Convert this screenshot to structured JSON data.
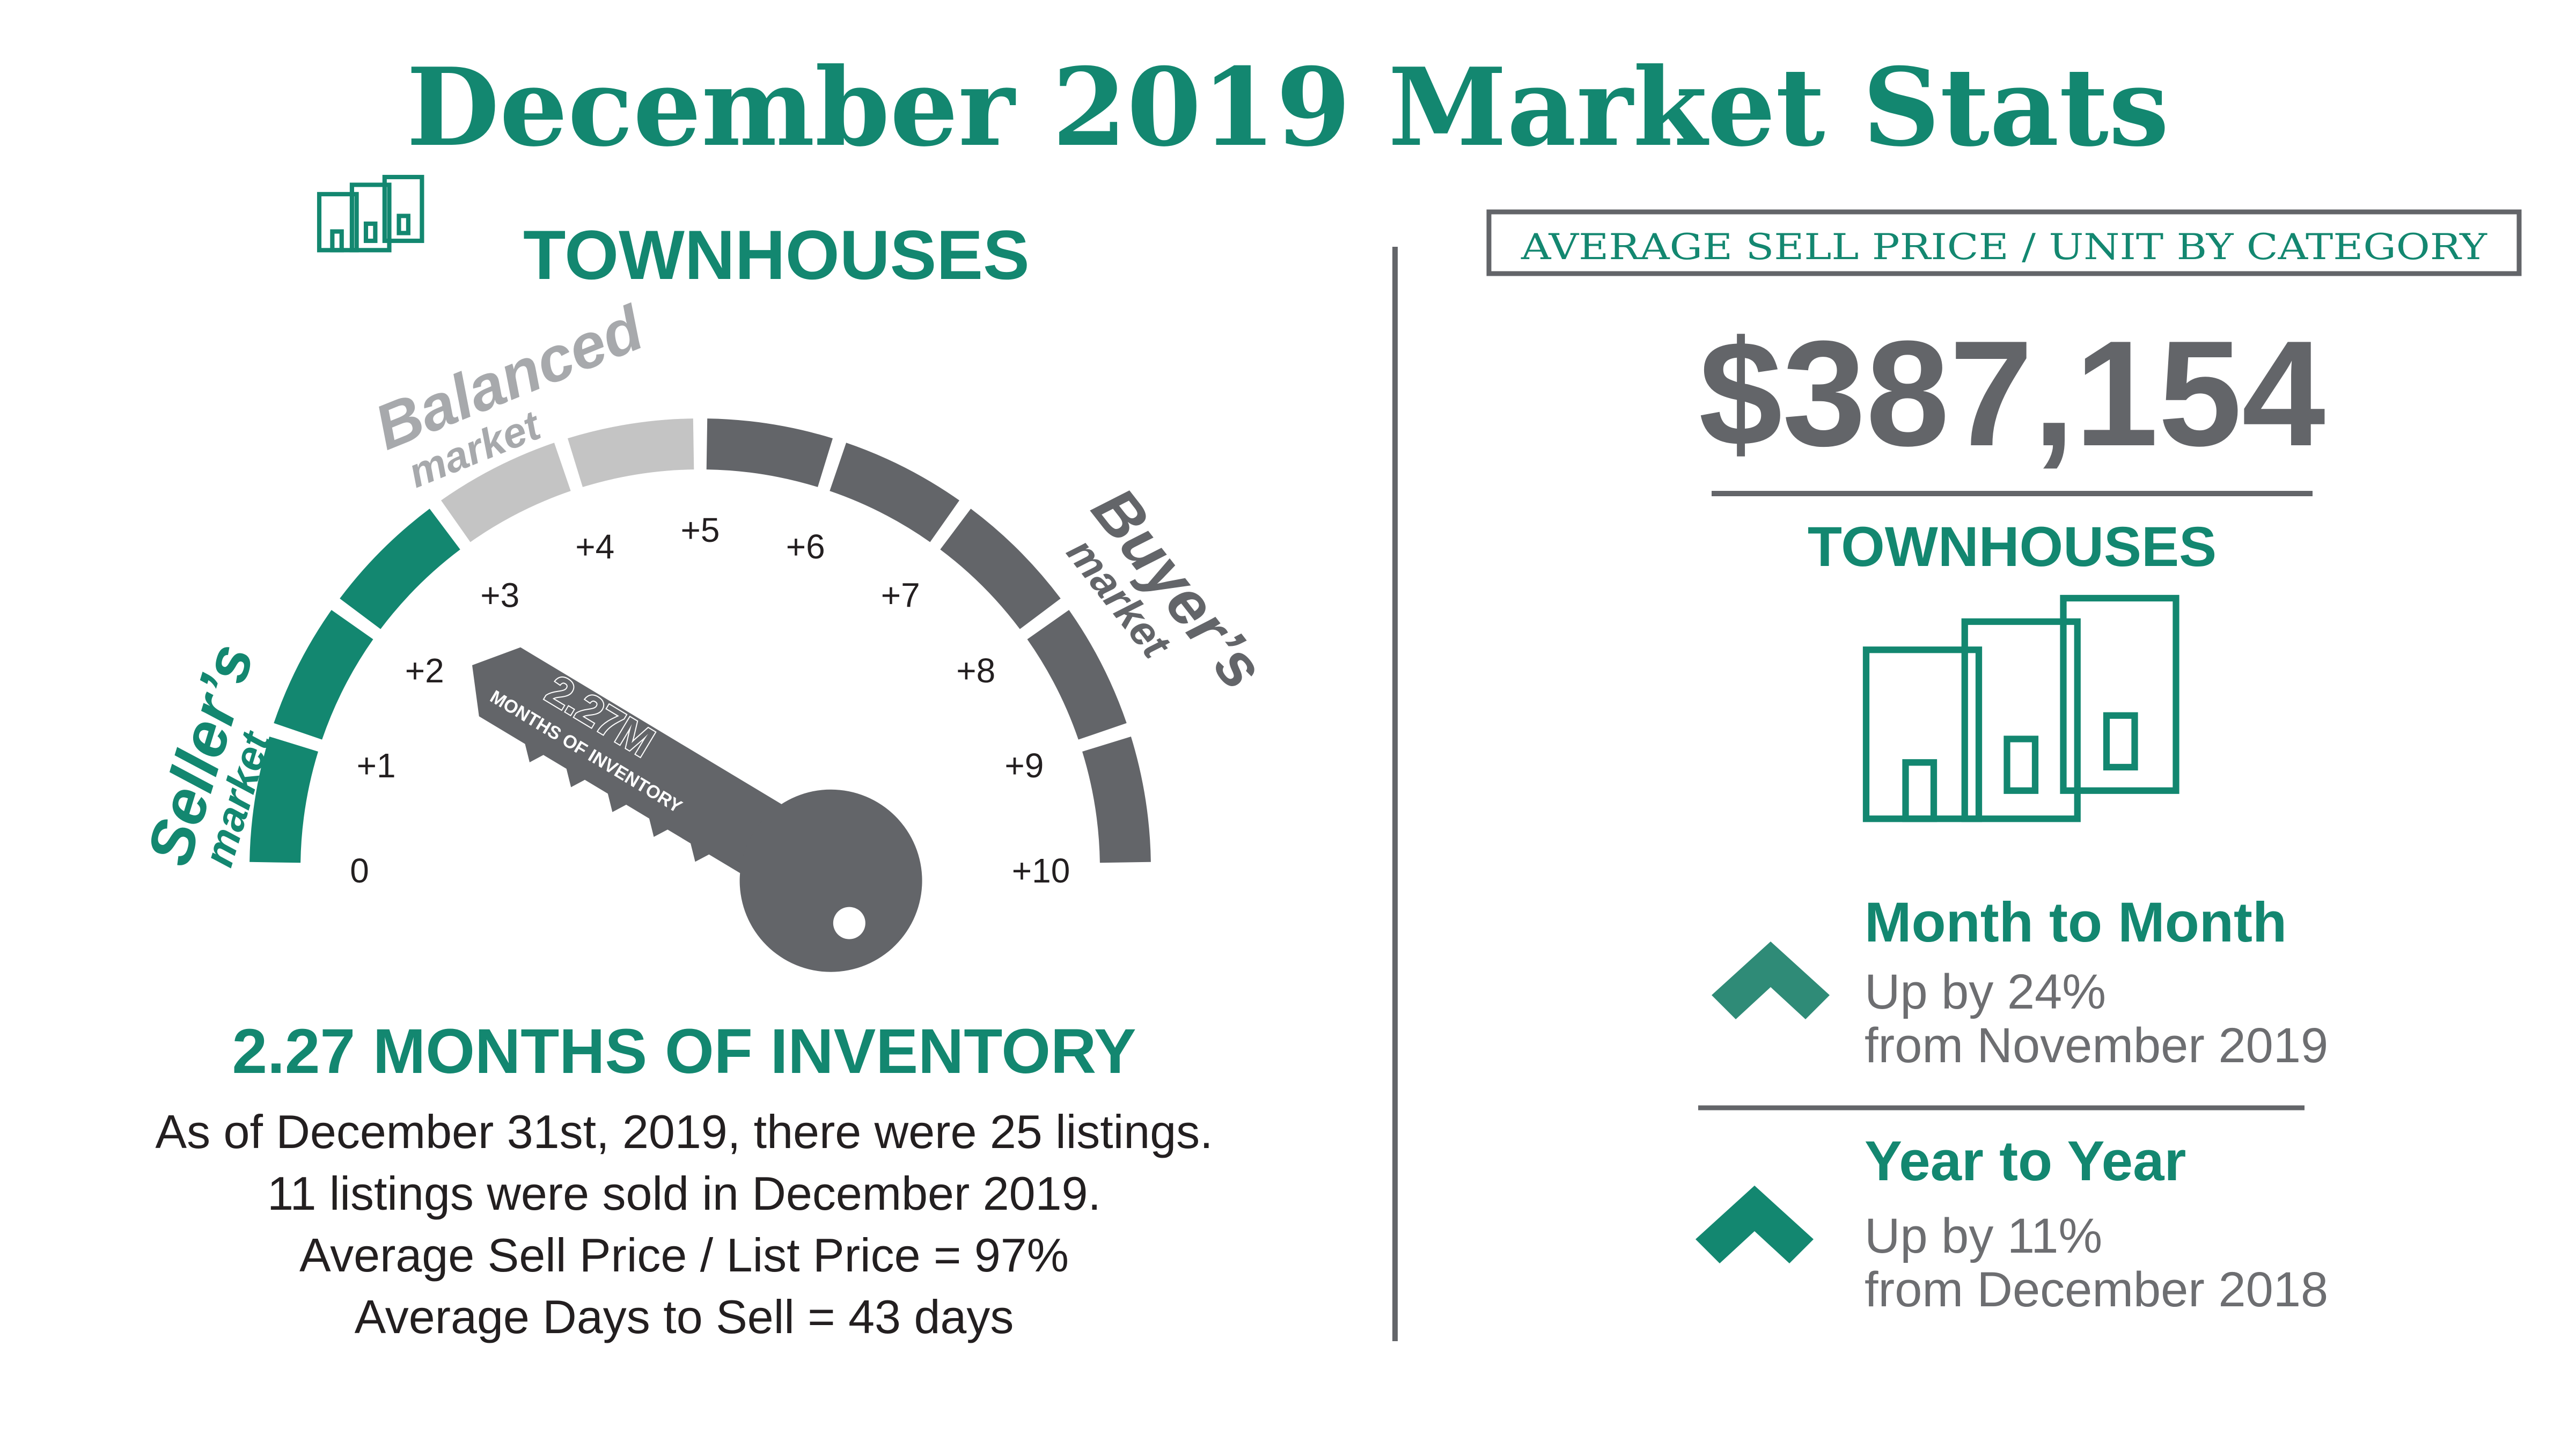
{
  "title": "December 2019 Market Stats",
  "colors": {
    "teal": "#138770",
    "teal_arrow_light": "#2f8b77",
    "gray_dark": "#636569",
    "gray_light": "#c4c4c4",
    "text_dark": "#231f20",
    "text_gray": "#6d6e71"
  },
  "left": {
    "category_title": "TOWNHOUSES",
    "category_icon": "townhouse-icon",
    "gauge": {
      "seller_label": "Seller’s",
      "seller_sub": "market",
      "balanced_label": "Balanced",
      "balanced_sub": "market",
      "buyer_label": "Buyer’s",
      "buyer_sub": "market",
      "min": 0,
      "max": 10,
      "seller_max": 3,
      "balanced_max": 5,
      "value": 2.27,
      "ticks": [
        "0",
        "+1",
        "+2",
        "+3",
        "+4",
        "+5",
        "+6",
        "+7",
        "+8",
        "+9",
        "+10"
      ],
      "key_value_label": "2.27M",
      "key_caption": "MONTHS OF INVENTORY"
    },
    "headline": "2.27 MONTHS OF INVENTORY",
    "lines": [
      "As of December 31st, 2019, there were 25 listings.",
      "11 listings were sold in December 2019.",
      "Average Sell Price / List Price = 97%",
      "Average Days to Sell = 43 days"
    ]
  },
  "right": {
    "box_label": "AVERAGE SELL PRICE / UNIT BY CATEGORY",
    "price": "$387,154",
    "category": "TOWNHOUSES",
    "category_icon": "townhouse-icon",
    "month": {
      "title": "Month to Month",
      "line1": "Up by 24%",
      "line2": "from November 2019",
      "icon": "chevron-up-icon"
    },
    "year": {
      "title": "Year to Year",
      "line1": "Up by 11%",
      "line2": "from December 2018",
      "icon": "chevron-up-icon"
    }
  }
}
